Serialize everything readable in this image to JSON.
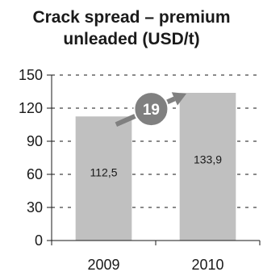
{
  "chart_data": {
    "type": "bar",
    "title_lines": [
      "Crack spread – premium",
      "unleaded (USD/t)"
    ],
    "categories": [
      "2009",
      "2010"
    ],
    "values": [
      112.5,
      133.9
    ],
    "value_labels": [
      "112,5",
      "133,9"
    ],
    "ylim": [
      0,
      150
    ],
    "yticks": [
      0,
      30,
      60,
      90,
      120,
      150
    ],
    "grid": true,
    "grid_style": "dashed",
    "legend": "none",
    "annotation": {
      "label": "19",
      "type": "change-arrow"
    },
    "colors": {
      "bar": "#c0c0c0",
      "grid": "#8a8a8a",
      "axis": "#1a1a1a",
      "badge": "#808080",
      "arrow": "#808080"
    }
  }
}
